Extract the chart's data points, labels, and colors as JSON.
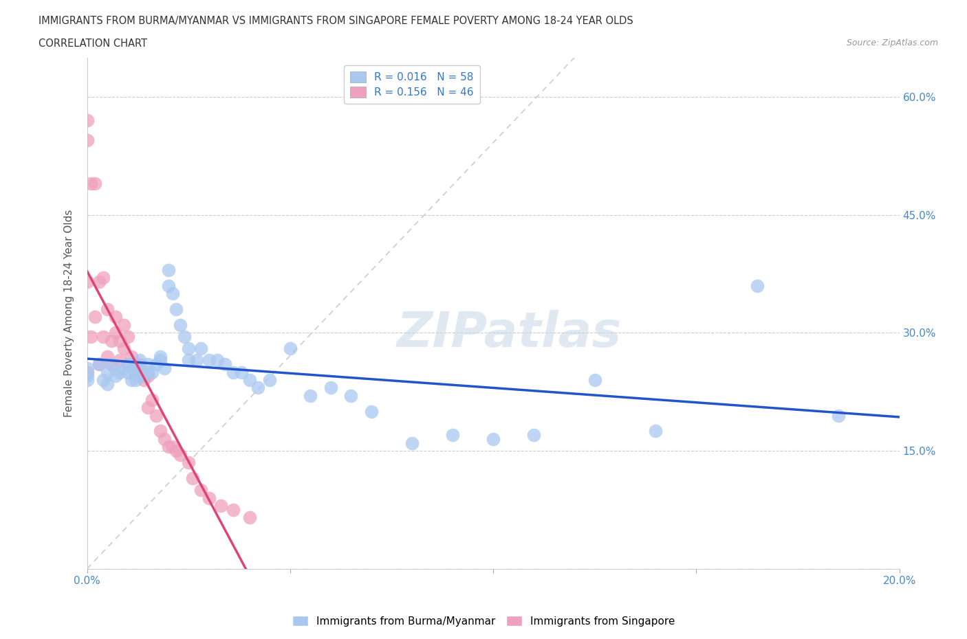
{
  "title_line1": "IMMIGRANTS FROM BURMA/MYANMAR VS IMMIGRANTS FROM SINGAPORE FEMALE POVERTY AMONG 18-24 YEAR OLDS",
  "title_line2": "CORRELATION CHART",
  "source_text": "Source: ZipAtlas.com",
  "ylabel": "Female Poverty Among 18-24 Year Olds",
  "xlim": [
    0.0,
    0.2
  ],
  "ylim": [
    0.0,
    0.65
  ],
  "x_ticks": [
    0.0,
    0.05,
    0.1,
    0.15,
    0.2
  ],
  "y_ticks": [
    0.0,
    0.15,
    0.3,
    0.45,
    0.6
  ],
  "color_burma": "#A8C8F0",
  "color_singapore": "#F0A0BC",
  "color_line_burma": "#2255CC",
  "color_line_singapore": "#DD4477",
  "watermark_text": "ZIPatlas",
  "burma_x": [
    0.0,
    0.0,
    0.0,
    0.003,
    0.004,
    0.005,
    0.005,
    0.006,
    0.007,
    0.008,
    0.009,
    0.01,
    0.01,
    0.011,
    0.011,
    0.012,
    0.012,
    0.013,
    0.013,
    0.014,
    0.015,
    0.015,
    0.016,
    0.017,
    0.018,
    0.018,
    0.019,
    0.02,
    0.02,
    0.021,
    0.022,
    0.023,
    0.024,
    0.025,
    0.025,
    0.027,
    0.028,
    0.03,
    0.032,
    0.034,
    0.036,
    0.038,
    0.04,
    0.042,
    0.045,
    0.05,
    0.055,
    0.06,
    0.065,
    0.07,
    0.08,
    0.09,
    0.1,
    0.11,
    0.125,
    0.14,
    0.165,
    0.185
  ],
  "burma_y": [
    0.245,
    0.24,
    0.255,
    0.26,
    0.24,
    0.25,
    0.235,
    0.26,
    0.245,
    0.25,
    0.255,
    0.26,
    0.25,
    0.24,
    0.26,
    0.25,
    0.24,
    0.265,
    0.255,
    0.245,
    0.26,
    0.25,
    0.25,
    0.26,
    0.27,
    0.265,
    0.255,
    0.38,
    0.36,
    0.35,
    0.33,
    0.31,
    0.295,
    0.28,
    0.265,
    0.265,
    0.28,
    0.265,
    0.265,
    0.26,
    0.25,
    0.25,
    0.24,
    0.23,
    0.24,
    0.28,
    0.22,
    0.23,
    0.22,
    0.2,
    0.16,
    0.17,
    0.165,
    0.17,
    0.24,
    0.175,
    0.36,
    0.195
  ],
  "singapore_x": [
    0.0,
    0.0,
    0.0,
    0.0,
    0.001,
    0.001,
    0.002,
    0.002,
    0.003,
    0.003,
    0.004,
    0.004,
    0.005,
    0.005,
    0.006,
    0.006,
    0.007,
    0.007,
    0.008,
    0.008,
    0.009,
    0.009,
    0.01,
    0.01,
    0.011,
    0.012,
    0.012,
    0.013,
    0.014,
    0.015,
    0.015,
    0.016,
    0.017,
    0.018,
    0.019,
    0.02,
    0.021,
    0.022,
    0.023,
    0.025,
    0.026,
    0.028,
    0.03,
    0.033,
    0.036,
    0.04
  ],
  "singapore_y": [
    0.57,
    0.545,
    0.365,
    0.25,
    0.49,
    0.295,
    0.49,
    0.32,
    0.365,
    0.26,
    0.37,
    0.295,
    0.33,
    0.27,
    0.29,
    0.26,
    0.32,
    0.3,
    0.29,
    0.265,
    0.28,
    0.31,
    0.295,
    0.26,
    0.27,
    0.25,
    0.26,
    0.26,
    0.24,
    0.245,
    0.205,
    0.215,
    0.195,
    0.175,
    0.165,
    0.155,
    0.155,
    0.15,
    0.145,
    0.135,
    0.115,
    0.1,
    0.09,
    0.08,
    0.075,
    0.065
  ]
}
